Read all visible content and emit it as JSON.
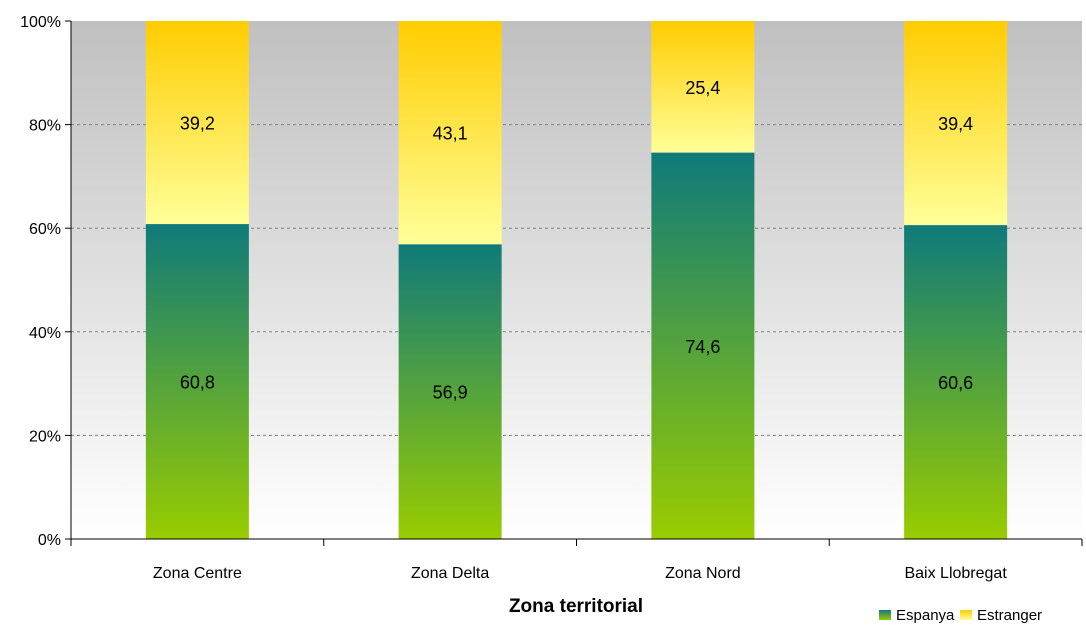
{
  "chart_data": {
    "type": "bar",
    "stacked": true,
    "percent": true,
    "categories": [
      "Zona Centre",
      "Zona Delta",
      "Zona Nord",
      "Baix Llobregat"
    ],
    "series": [
      {
        "name": "Espanya",
        "values": [
          60.8,
          56.9,
          74.6,
          60.6
        ],
        "labels": [
          "60,8",
          "56,9",
          "74,6",
          "60,6"
        ]
      },
      {
        "name": "Estranger",
        "values": [
          39.2,
          43.1,
          25.4,
          39.4
        ],
        "labels": [
          "39,2",
          "43,1",
          "25,4",
          "39,4"
        ]
      }
    ],
    "xlabel": "Zona territorial",
    "ylabel": "",
    "ylim": [
      0,
      100
    ],
    "yticks": [
      "0%",
      "20%",
      "40%",
      "60%",
      "80%",
      "100%"
    ],
    "grid": true,
    "legend": "bottom-right",
    "colors": {
      "espanya_top": "#0f7a7a",
      "espanya_bottom": "#99cc00",
      "estranger_top": "#ffcc00",
      "estranger_bottom": "#ffff99",
      "plot_bg_top": "#c0c0c0",
      "plot_bg_bottom": "#ffffff"
    }
  }
}
